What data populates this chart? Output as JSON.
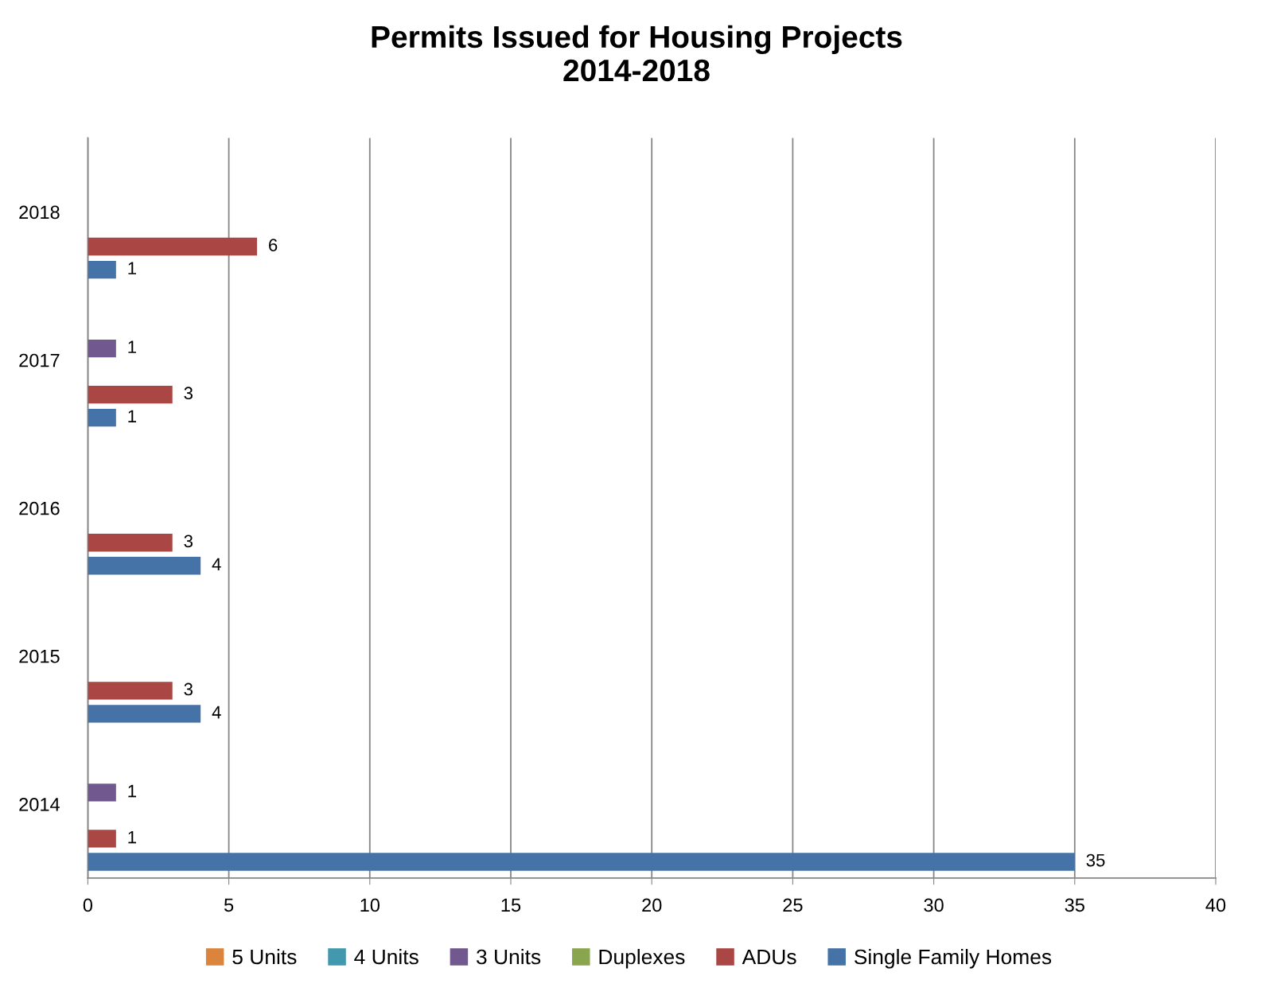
{
  "chart_data": {
    "type": "bar",
    "orientation": "horizontal",
    "title": "Permits Issued for Housing Projects\n2014-2018",
    "categories": [
      "2018",
      "2017",
      "2016",
      "2015",
      "2014"
    ],
    "series": [
      {
        "name": "5 Units",
        "color": "#db843d",
        "values": [
          null,
          null,
          null,
          null,
          null
        ]
      },
      {
        "name": "4 Units",
        "color": "#4198af",
        "values": [
          null,
          null,
          null,
          null,
          null
        ]
      },
      {
        "name": "3 Units",
        "color": "#71588f",
        "values": [
          null,
          1,
          null,
          null,
          1
        ]
      },
      {
        "name": "Duplexes",
        "color": "#89a54e",
        "values": [
          null,
          null,
          null,
          null,
          null
        ]
      },
      {
        "name": "ADUs",
        "color": "#aa4643",
        "values": [
          6,
          3,
          3,
          3,
          1
        ]
      },
      {
        "name": "Single Family Homes",
        "color": "#4572a7",
        "values": [
          1,
          1,
          4,
          4,
          35
        ]
      }
    ],
    "xlim": [
      0,
      40
    ],
    "xticks": [
      0,
      5,
      10,
      15,
      20,
      25,
      30,
      35,
      40
    ],
    "grid": "x",
    "legend": "bottom",
    "data_labels": true
  }
}
